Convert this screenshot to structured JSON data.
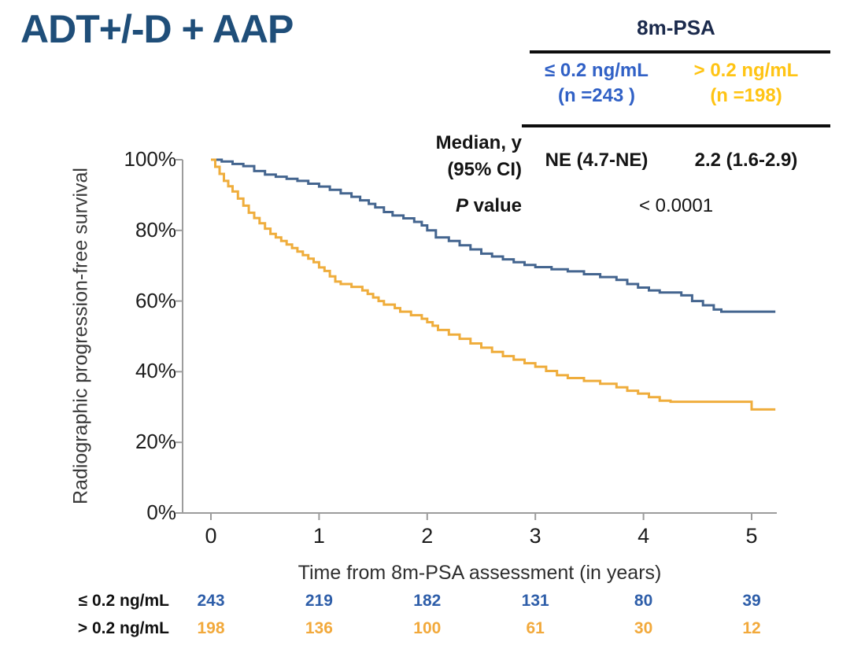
{
  "title": "ADT+/-D + AAP",
  "stats_table": {
    "header": "8m-PSA",
    "columns": [
      {
        "label": "≤ 0.2 ng/mL",
        "n": "(n =243 )",
        "color": "#3161C6"
      },
      {
        "label": "> 0.2 ng/mL",
        "n": "(n =198)",
        "color": "#FFC414"
      }
    ],
    "median_label_line1": "Median, y",
    "median_label_line2": "(95% CI)",
    "median_values": [
      "NE (4.7-NE)",
      "2.2 (1.6-2.9)"
    ],
    "pvalue_label_italic": "P",
    "pvalue_label_rest": " value",
    "pvalue": "< 0.0001"
  },
  "chart_data": {
    "type": "line",
    "variant": "kaplan-meier-step",
    "title": "",
    "xlabel": "Time from 8m-PSA assessment (in years)",
    "ylabel": "Radiographic progression-free survival",
    "xlim": [
      0,
      5.25
    ],
    "ylim": [
      0,
      100
    ],
    "xticks": [
      0,
      1,
      2,
      3,
      4,
      5
    ],
    "ytick_values": [
      0,
      20,
      40,
      60,
      80,
      100
    ],
    "ytick_labels": [
      "0%",
      "20%",
      "40%",
      "60%",
      "80%",
      "100%"
    ],
    "grid": false,
    "legend_position": "none (series keyed by color to table header)",
    "axis_color": "#9C9C9C",
    "series": [
      {
        "name": "≤ 0.2 ng/mL",
        "color": "#44658F",
        "points": [
          [
            0,
            100
          ],
          [
            0.1,
            99.5
          ],
          [
            0.2,
            98.8
          ],
          [
            0.3,
            98.2
          ],
          [
            0.4,
            96.8
          ],
          [
            0.5,
            95.8
          ],
          [
            0.6,
            95.2
          ],
          [
            0.7,
            94.6
          ],
          [
            0.8,
            94
          ],
          [
            0.9,
            93.2
          ],
          [
            1.0,
            92.4
          ],
          [
            1.1,
            91.5
          ],
          [
            1.2,
            90.5
          ],
          [
            1.3,
            89.5
          ],
          [
            1.38,
            88.5
          ],
          [
            1.46,
            87.5
          ],
          [
            1.52,
            86.5
          ],
          [
            1.6,
            85.2
          ],
          [
            1.68,
            84.2
          ],
          [
            1.78,
            83.4
          ],
          [
            1.88,
            82.4
          ],
          [
            1.95,
            81.4
          ],
          [
            2.0,
            80
          ],
          [
            2.08,
            78
          ],
          [
            2.2,
            77
          ],
          [
            2.3,
            75.8
          ],
          [
            2.4,
            74.6
          ],
          [
            2.5,
            73.4
          ],
          [
            2.6,
            72.6
          ],
          [
            2.7,
            71.8
          ],
          [
            2.8,
            71
          ],
          [
            2.9,
            70.2
          ],
          [
            3.0,
            69.6
          ],
          [
            3.15,
            69
          ],
          [
            3.3,
            68.4
          ],
          [
            3.45,
            67.6
          ],
          [
            3.6,
            66.8
          ],
          [
            3.75,
            66
          ],
          [
            3.85,
            64.8
          ],
          [
            3.95,
            63.8
          ],
          [
            4.05,
            63
          ],
          [
            4.15,
            62.4
          ],
          [
            4.35,
            61.6
          ],
          [
            4.45,
            60
          ],
          [
            4.55,
            58.8
          ],
          [
            4.65,
            57.6
          ],
          [
            4.72,
            57
          ],
          [
            5.22,
            57
          ]
        ]
      },
      {
        "name": "> 0.2 ng/mL",
        "color": "#EFAD3C",
        "points": [
          [
            0,
            100
          ],
          [
            0.04,
            98
          ],
          [
            0.08,
            96
          ],
          [
            0.12,
            94
          ],
          [
            0.16,
            92.5
          ],
          [
            0.2,
            91
          ],
          [
            0.25,
            89
          ],
          [
            0.3,
            87
          ],
          [
            0.35,
            85
          ],
          [
            0.4,
            83.5
          ],
          [
            0.45,
            82
          ],
          [
            0.5,
            80.5
          ],
          [
            0.55,
            79
          ],
          [
            0.6,
            78
          ],
          [
            0.65,
            77
          ],
          [
            0.7,
            76
          ],
          [
            0.75,
            75
          ],
          [
            0.8,
            74
          ],
          [
            0.85,
            73
          ],
          [
            0.9,
            72
          ],
          [
            0.95,
            71
          ],
          [
            1.0,
            69.5
          ],
          [
            1.05,
            68.5
          ],
          [
            1.1,
            67
          ],
          [
            1.15,
            65.5
          ],
          [
            1.2,
            64.8
          ],
          [
            1.3,
            64
          ],
          [
            1.4,
            63
          ],
          [
            1.45,
            62
          ],
          [
            1.5,
            61
          ],
          [
            1.55,
            60
          ],
          [
            1.6,
            59
          ],
          [
            1.7,
            58
          ],
          [
            1.75,
            57
          ],
          [
            1.85,
            56
          ],
          [
            1.95,
            55
          ],
          [
            2.0,
            54
          ],
          [
            2.05,
            53
          ],
          [
            2.1,
            51.8
          ],
          [
            2.2,
            50.5
          ],
          [
            2.3,
            49.3
          ],
          [
            2.4,
            48
          ],
          [
            2.5,
            46.8
          ],
          [
            2.6,
            45.6
          ],
          [
            2.7,
            44.4
          ],
          [
            2.8,
            43.4
          ],
          [
            2.9,
            42.4
          ],
          [
            3.0,
            41.4
          ],
          [
            3.1,
            40.2
          ],
          [
            3.2,
            39
          ],
          [
            3.3,
            38.2
          ],
          [
            3.45,
            37.4
          ],
          [
            3.6,
            36.6
          ],
          [
            3.75,
            35.6
          ],
          [
            3.85,
            34.6
          ],
          [
            3.95,
            33.8
          ],
          [
            4.05,
            32.8
          ],
          [
            4.15,
            31.8
          ],
          [
            4.25,
            31.5
          ],
          [
            5.0,
            29.3
          ],
          [
            5.22,
            29.3
          ]
        ]
      }
    ]
  },
  "risk_table": {
    "rows": [
      {
        "label": "≤ 0.2 ng/mL",
        "color": "#2E5EA9",
        "counts": [
          "243",
          "219",
          "182",
          "131",
          "80",
          "39"
        ]
      },
      {
        "label": "> 0.2 ng/mL",
        "color": "#F2A93B",
        "counts": [
          "198",
          "136",
          "100",
          "61",
          "30",
          "12"
        ]
      }
    ]
  }
}
